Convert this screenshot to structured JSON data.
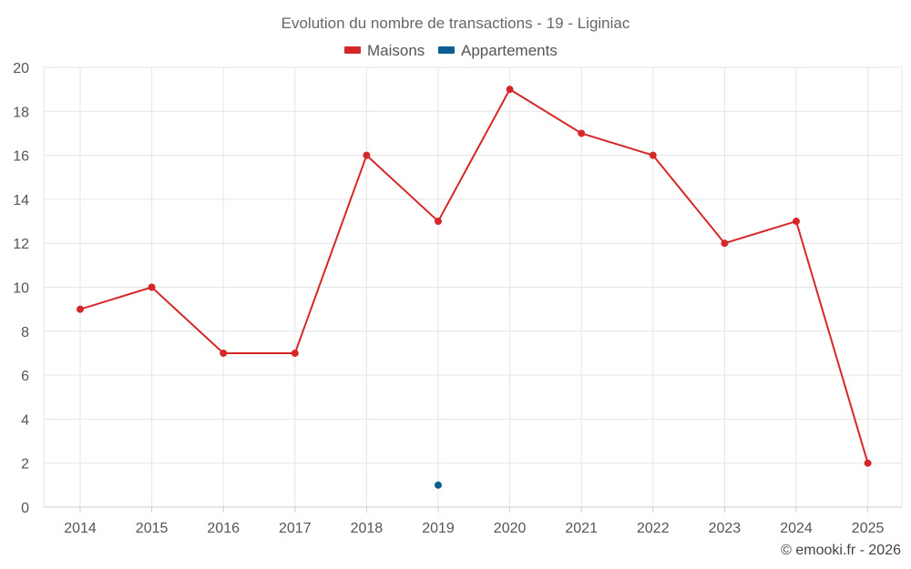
{
  "chart_data": {
    "type": "line",
    "title": "Evolution du nombre de transactions - 19 - Liginiac",
    "categories": [
      "2014",
      "2015",
      "2016",
      "2017",
      "2018",
      "2019",
      "2020",
      "2021",
      "2022",
      "2023",
      "2024",
      "2025"
    ],
    "series": [
      {
        "name": "Maisons",
        "color": "#d62728",
        "values": [
          9,
          10,
          7,
          7,
          16,
          13,
          19,
          17,
          16,
          12,
          13,
          2
        ]
      },
      {
        "name": "Appartements",
        "color": "#0b5f95",
        "values": [
          null,
          null,
          null,
          null,
          null,
          1,
          null,
          null,
          null,
          null,
          null,
          null
        ]
      }
    ],
    "ylim": [
      0,
      20
    ],
    "yticks": [
      "0",
      "2",
      "4",
      "6",
      "8",
      "10",
      "12",
      "14",
      "16",
      "18",
      "20"
    ],
    "grid": true,
    "legend_position": "top-center"
  },
  "credit": "© emooki.fr - 2026"
}
